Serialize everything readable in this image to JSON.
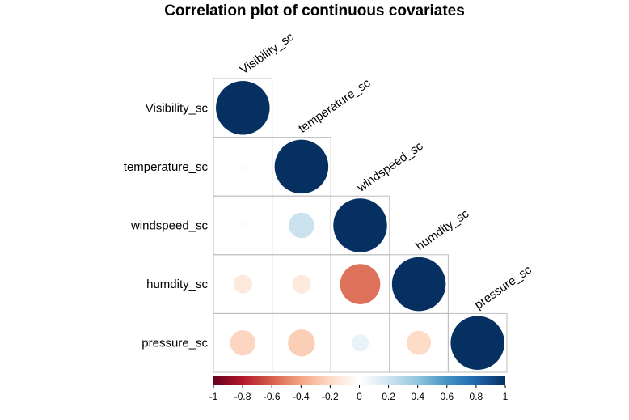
{
  "chart_data": {
    "type": "heatmap",
    "title": "Correlation plot of continuous covariates",
    "variables": [
      "Visibility_sc",
      "temperature_sc",
      "windspeed_sc",
      "humdity_sc",
      "pressure_sc"
    ],
    "matrix": [
      [
        1.0,
        0.02,
        0.02,
        -0.12,
        -0.22
      ],
      [
        0.02,
        1.0,
        0.22,
        -0.12,
        -0.25
      ],
      [
        0.02,
        0.22,
        1.0,
        -0.55,
        0.1
      ],
      [
        -0.12,
        -0.12,
        -0.55,
        1.0,
        -0.2
      ],
      [
        -0.22,
        -0.25,
        0.1,
        -0.2,
        1.0
      ]
    ],
    "shape": "lower-triangle circles",
    "colorbar": {
      "range": [
        -1,
        1
      ],
      "ticks": [
        "-1",
        "-0.8",
        "-0.6",
        "-0.4",
        "-0.2",
        "0",
        "0.2",
        "0.4",
        "0.6",
        "0.8",
        "1"
      ],
      "colors": [
        "#67001F",
        "#B2182B",
        "#D6604D",
        "#F4A582",
        "#FDDBC7",
        "#FFFFFF",
        "#D1E5F0",
        "#92C5DE",
        "#4393C3",
        "#2166AC",
        "#053061"
      ]
    }
  }
}
